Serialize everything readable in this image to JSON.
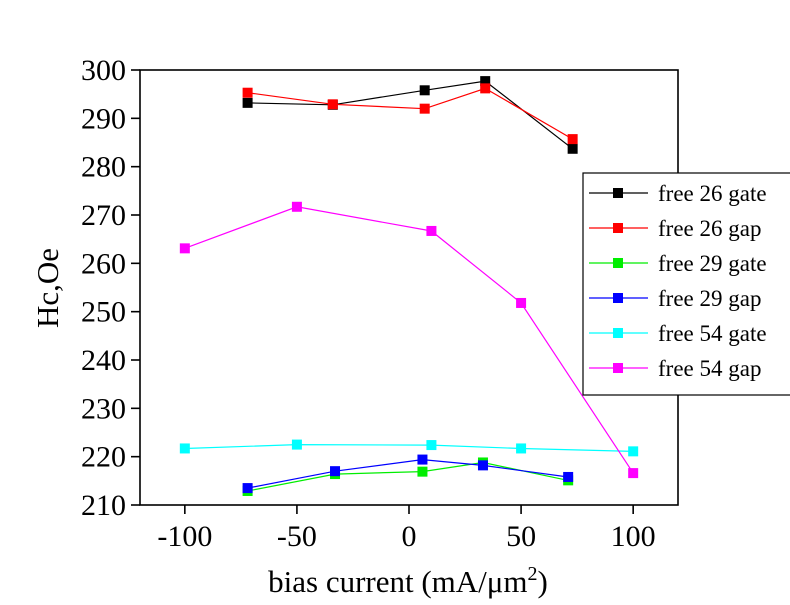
{
  "chart_data": {
    "type": "line",
    "title": "",
    "xlabel_main": "bias current (mA/μm",
    "xlabel_sup": "2",
    "xlabel_end": ")",
    "ylabel": "Hc,Oe",
    "xlim": [
      -120,
      120
    ],
    "ylim": [
      210,
      300
    ],
    "xticks": [
      -100,
      -50,
      0,
      50,
      100
    ],
    "xtick_labels": [
      "-100",
      "-50",
      "0",
      "50",
      "100"
    ],
    "yticks": [
      210,
      220,
      230,
      240,
      250,
      260,
      270,
      280,
      290,
      300
    ],
    "ytick_labels": [
      "210",
      "220",
      "230",
      "240",
      "250",
      "260",
      "270",
      "280",
      "290",
      "300"
    ],
    "grid": false,
    "legend_position": "right",
    "series": [
      {
        "name": "free 26 gate",
        "color": "#000000",
        "x": [
          -72,
          -34,
          7,
          34,
          73
        ],
        "y": [
          293.2,
          292.8,
          295.8,
          297.7,
          283.7
        ]
      },
      {
        "name": "free 26 gap",
        "color": "#ff0000",
        "x": [
          -72,
          -34,
          7,
          34,
          73
        ],
        "y": [
          295.3,
          292.9,
          292.0,
          296.2,
          285.7
        ]
      },
      {
        "name": "free 29 gate",
        "color": "#00ee00",
        "x": [
          -72,
          -33,
          6,
          33,
          71
        ],
        "y": [
          212.9,
          216.4,
          216.9,
          218.8,
          215.1
        ]
      },
      {
        "name": "free 29 gap",
        "color": "#0000ff",
        "x": [
          -72,
          -33,
          6,
          33,
          71
        ],
        "y": [
          213.5,
          217.0,
          219.4,
          218.2,
          215.8
        ]
      },
      {
        "name": "free 54 gate",
        "color": "#00ffff",
        "x": [
          -100,
          -50,
          10,
          50,
          100
        ],
        "y": [
          221.7,
          222.5,
          222.4,
          221.7,
          221.1
        ]
      },
      {
        "name": "free 54 gap",
        "color": "#ff00ff",
        "x": [
          -100,
          -50,
          10,
          50,
          100
        ],
        "y": [
          263.1,
          271.7,
          266.7,
          251.8,
          216.6
        ]
      }
    ]
  }
}
